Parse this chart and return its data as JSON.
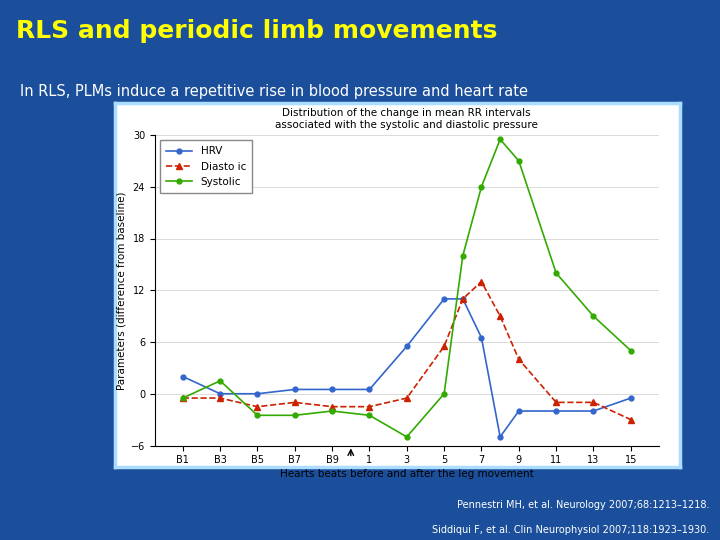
{
  "title": "RLS and periodic limb movements",
  "subtitle": "In RLS, PLMs induce a repetitive rise in blood pressure and heart rate",
  "chart_title_line1": "Distribution of the change in mean RR intervals",
  "chart_title_line2": "associated with the systolic and diastolic pressure",
  "xlabel": "Hearts beats before and after the leg movement",
  "ylabel": "Parameters (difference from baseline)",
  "citation1": "Pennestri MH, et al. Neurology 2007;68:1213–1218.",
  "citation2": "Siddiqui F, et al. Clin Neurophysiol 2007;118:1923–1930.",
  "bg_outer": "#1b4f9b",
  "bg_chart": "#ffffff",
  "title_color": "#ffff00",
  "subtitle_color": "#ffffff",
  "citation_color": "#ffffff",
  "border_color": "#aaddff",
  "x_labels": [
    "B1",
    "B3",
    "B5",
    "B7",
    "B9",
    "1",
    "3",
    "5",
    "7",
    "9",
    "11",
    "13",
    "15"
  ],
  "x_numeric": [
    -9,
    -7,
    -5,
    -3,
    -1,
    1,
    3,
    5,
    7,
    9,
    11,
    13,
    15
  ],
  "hrv_color": "#3366cc",
  "diastolic_color": "#cc2200",
  "systolic_color": "#33aa00",
  "hrv_x": [
    -9,
    -7,
    -5,
    -3,
    -1,
    1,
    3,
    5,
    6,
    7,
    8,
    9,
    11,
    13,
    15
  ],
  "hrv_y": [
    2.0,
    0.0,
    0.0,
    0.5,
    0.5,
    0.5,
    5.5,
    11.0,
    11.0,
    6.5,
    -5.0,
    -2.0,
    -2.0,
    -2.0,
    -0.5
  ],
  "diastolic_x": [
    -9,
    -7,
    -5,
    -3,
    -1,
    1,
    3,
    5,
    6,
    7,
    8,
    9,
    11,
    13,
    15
  ],
  "diastolic_y": [
    -0.5,
    -0.5,
    -1.5,
    -1.0,
    -1.5,
    -1.5,
    -0.5,
    5.5,
    11.0,
    13.0,
    9.0,
    4.0,
    -1.0,
    -1.0,
    -3.0
  ],
  "systolic_x": [
    -9,
    -7,
    -5,
    -3,
    -1,
    1,
    3,
    5,
    6,
    7,
    8,
    9,
    11,
    13,
    15
  ],
  "systolic_y": [
    -0.5,
    1.5,
    -2.5,
    -2.5,
    -2.0,
    -2.5,
    -5.0,
    0.0,
    16.0,
    24.0,
    29.5,
    27.0,
    14.0,
    9.0,
    5.0
  ],
  "ylim": [
    -6,
    30
  ],
  "yticks": [
    -6,
    0,
    6,
    12,
    18,
    24,
    30
  ],
  "xlim": [
    -10.5,
    16.5
  ],
  "legend_hrv": "HRV",
  "legend_diastolic": "Diasto ic",
  "legend_systolic": "Systolic"
}
